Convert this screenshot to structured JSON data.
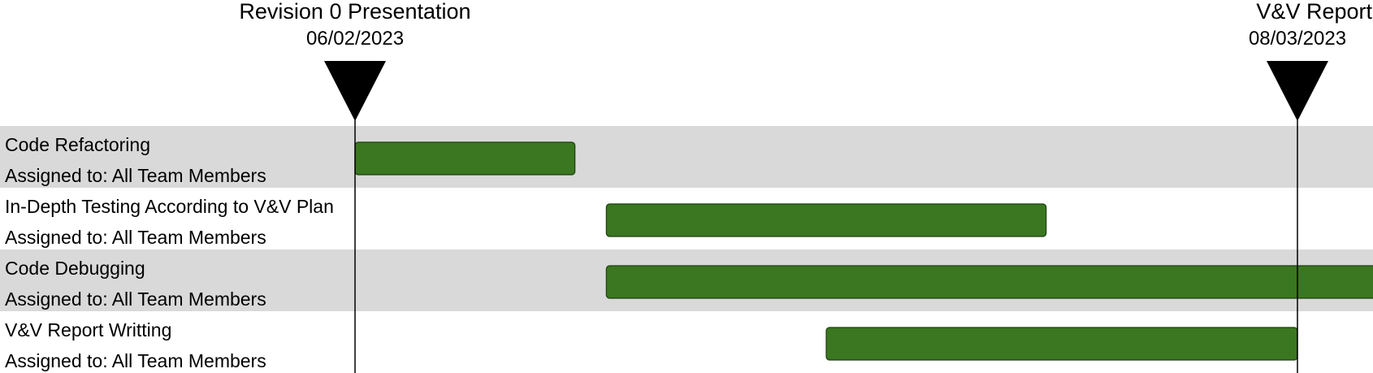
{
  "chart_data": {
    "type": "gantt",
    "milestones": [
      {
        "title": "Revision 0 Presentation",
        "date": "06/02/2023"
      },
      {
        "title": "V&V Report",
        "date": "08/03/2023"
      }
    ],
    "tasks": [
      {
        "name": "Code Refactoring",
        "assignee": "Assigned to: All Team Members",
        "start": "2023-02-06",
        "end": "2023-02-13"
      },
      {
        "name": "In-Depth Testing According to V&V Plan",
        "assignee": "Assigned to: All Team Members",
        "start": "2023-02-14",
        "end": "2023-02-28"
      },
      {
        "name": "Code Debugging",
        "assignee": "Assigned to: All Team Members",
        "start": "2023-02-14",
        "end": "2023-03-11"
      },
      {
        "name": "V&V Report Writting",
        "assignee": "Assigned to: All Team Members",
        "start": "2023-02-21",
        "end": "2023-03-08"
      }
    ],
    "colors": {
      "bar": "#3a7720",
      "bar_border": "#1e3e10",
      "row_shade": "#d9d9d9",
      "marker": "#000000"
    }
  }
}
